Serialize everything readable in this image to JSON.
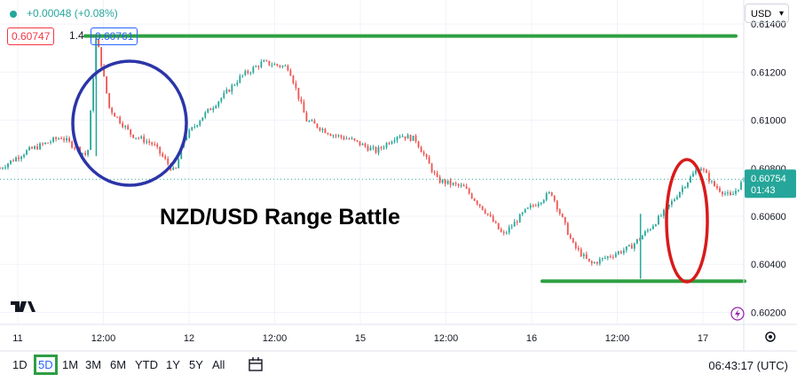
{
  "header": {
    "change": "+0.00048 (+0.08%)",
    "bid": "0.60747",
    "spread": "1.4",
    "ask": "0.60761",
    "currency": "USD"
  },
  "annotation": {
    "title": "NZD/USD Range Battle"
  },
  "price_tag": {
    "price": "0.60754",
    "countdown": "01:43"
  },
  "toolbar": {
    "timeframes": [
      "1D",
      "5D",
      "1M",
      "3M",
      "6M",
      "YTD",
      "1Y",
      "5Y",
      "All"
    ],
    "active": "5D",
    "clock": "06:43:17 (UTC)"
  },
  "colors": {
    "up": "#26a69a",
    "down": "#ef5350",
    "range_line": "#2ea043",
    "circle_blue": "#2b35a8",
    "circle_red": "#d81b1b"
  },
  "chart_data": {
    "type": "line",
    "title": "NZD/USD Range Battle",
    "y_ticks": [
      "0.61400",
      "0.61200",
      "0.61000",
      "0.60800",
      "0.60600",
      "0.60400",
      "0.60200"
    ],
    "x_ticks": [
      "11",
      "12:00",
      "12",
      "12:00",
      "15",
      "12:00",
      "16",
      "12:00",
      "17"
    ],
    "ylim": [
      0.6015,
      0.615
    ],
    "x": [
      0,
      0.3,
      0.7,
      1.0,
      1.1,
      1.25,
      1.5,
      1.75,
      2.0,
      2.1,
      2.3,
      2.55,
      2.75,
      3.0,
      3.3,
      3.5,
      3.8,
      4.0,
      4.3,
      4.55,
      4.75,
      5.0,
      5.3,
      5.55,
      5.75,
      6.0,
      6.3,
      6.55,
      6.75,
      7.0,
      7.2,
      7.4,
      7.6,
      7.8,
      8.0,
      8.15,
      8.35,
      8.5
    ],
    "values": [
      0.608,
      0.6087,
      0.6093,
      0.6085,
      0.6135,
      0.6105,
      0.6094,
      0.609,
      0.6078,
      0.6092,
      0.6101,
      0.611,
      0.6118,
      0.6124,
      0.6122,
      0.61,
      0.6094,
      0.6092,
      0.6087,
      0.6094,
      0.6092,
      0.6075,
      0.6072,
      0.6062,
      0.6052,
      0.6062,
      0.607,
      0.6048,
      0.604,
      0.6044,
      0.6047,
      0.6054,
      0.6062,
      0.6072,
      0.6081,
      0.6073,
      0.6068,
      0.6075
    ],
    "current_price": 0.60754,
    "range_high": 0.6135,
    "range_low": 0.6033,
    "grid": true
  }
}
